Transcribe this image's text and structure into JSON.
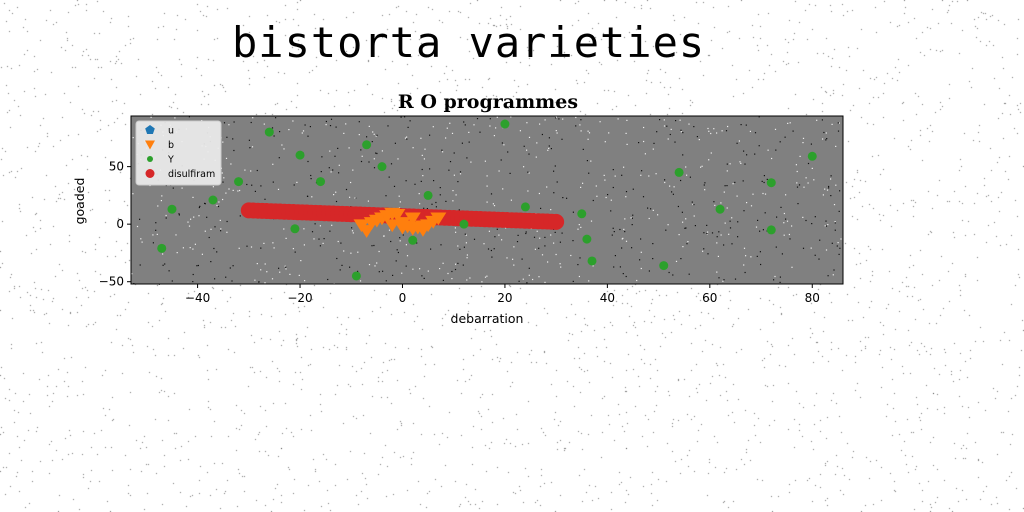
{
  "page": {
    "title": "bistorta varieties"
  },
  "chart_data": {
    "type": "scatter",
    "title": "R O programmes",
    "xlabel": "debarration",
    "ylabel": "goaded",
    "xlim": [
      -53,
      86
    ],
    "ylim": [
      -52,
      94
    ],
    "xticks": [
      -40,
      -20,
      0,
      20,
      40,
      60,
      80
    ],
    "yticks": [
      -50,
      0,
      50
    ],
    "grid": false,
    "legend_position": "top-left",
    "plot_background": "#808080",
    "series": [
      {
        "name": "u",
        "color": "#1f77b4",
        "marker": "pentagon",
        "points": []
      },
      {
        "name": "b",
        "color": "#ff7f0e",
        "marker": "triangle-down",
        "points": [
          [
            -8,
            0
          ],
          [
            -7,
            -5
          ],
          [
            -6,
            2
          ],
          [
            -5,
            4
          ],
          [
            -4,
            6
          ],
          [
            -3,
            8
          ],
          [
            -2,
            10
          ],
          [
            -1,
            9
          ],
          [
            0,
            2
          ],
          [
            1,
            -1
          ],
          [
            2,
            -3
          ],
          [
            3,
            -2
          ],
          [
            4,
            -1
          ],
          [
            5,
            0
          ],
          [
            6,
            3
          ],
          [
            7,
            6
          ],
          [
            -2,
            0
          ],
          [
            0,
            -2
          ],
          [
            4,
            -4
          ],
          [
            2,
            6
          ]
        ]
      },
      {
        "name": "Y",
        "color": "#2ca02c",
        "marker": "circle",
        "points": [
          [
            -47,
            -21
          ],
          [
            -45,
            13
          ],
          [
            -37,
            21
          ],
          [
            -32,
            37
          ],
          [
            -26,
            80
          ],
          [
            -21,
            -4
          ],
          [
            -20,
            60
          ],
          [
            -16,
            37
          ],
          [
            -9,
            -45
          ],
          [
            -7,
            69
          ],
          [
            -4,
            50
          ],
          [
            2,
            -14
          ],
          [
            5,
            25
          ],
          [
            12,
            0
          ],
          [
            20,
            87
          ],
          [
            24,
            15
          ],
          [
            35,
            9
          ],
          [
            36,
            -13
          ],
          [
            37,
            -32
          ],
          [
            51,
            -36
          ],
          [
            54,
            45
          ],
          [
            62,
            13
          ],
          [
            72,
            36
          ],
          [
            72,
            -5
          ],
          [
            80,
            59
          ]
        ]
      },
      {
        "name": "disulfiram",
        "color": "#d62728",
        "marker": "circle-large",
        "line": {
          "x": [
            -30,
            30
          ],
          "y": [
            12,
            2
          ],
          "count": 70
        }
      }
    ]
  }
}
